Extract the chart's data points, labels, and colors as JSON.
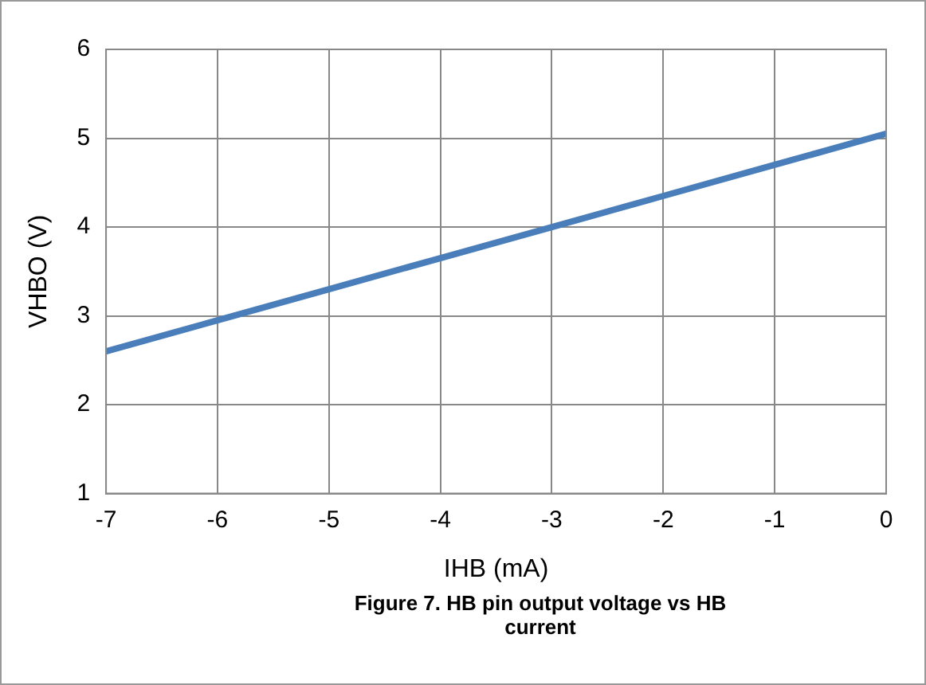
{
  "chart_data": {
    "type": "line",
    "title": "Figure 7.  HB pin output voltage vs HB current",
    "xlabel": "IHB (mA)",
    "ylabel": "VHBO (V)",
    "x": [
      -7,
      -6,
      -5,
      -4,
      -3,
      -2,
      -1,
      0
    ],
    "series": [
      {
        "color": "#4a7ebb",
        "values": [
          2.6,
          2.95,
          3.3,
          3.65,
          4.0,
          4.35,
          4.7,
          5.05
        ]
      }
    ],
    "xlim": [
      -7,
      0
    ],
    "xticks": [
      -7,
      -6,
      -5,
      -4,
      -3,
      -2,
      -1,
      0
    ],
    "ylim": [
      1,
      6
    ],
    "yticks": [
      1,
      2,
      3,
      4,
      5,
      6
    ],
    "grid": true,
    "legend": false,
    "marker": "none",
    "line_style": "solid"
  }
}
